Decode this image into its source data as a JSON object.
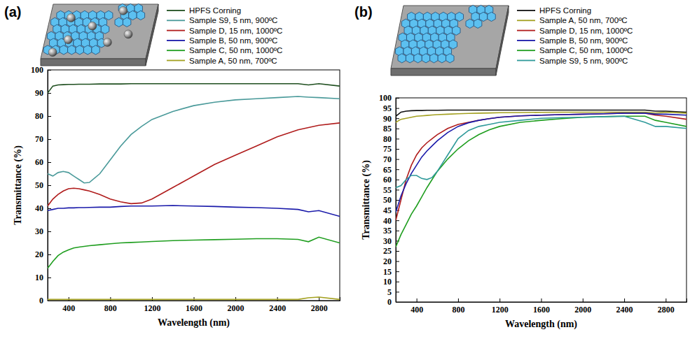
{
  "chart_data": [
    {
      "type": "line",
      "title": "(a)",
      "x_label": "Wavelength (nm)",
      "y_label": "Transmittance (%)",
      "x": [
        200,
        250,
        300,
        350,
        400,
        450,
        500,
        550,
        600,
        700,
        800,
        900,
        1000,
        1100,
        1200,
        1400,
        1600,
        1800,
        2000,
        2200,
        2400,
        2600,
        2700,
        2800,
        3000
      ],
      "xlim": [
        200,
        3000
      ],
      "xticks": [
        400,
        800,
        1200,
        1600,
        2000,
        2400,
        2800
      ],
      "ylim": [
        0,
        100
      ],
      "yticks": [
        0,
        10,
        20,
        30,
        40,
        50,
        60,
        70,
        80,
        90,
        100
      ],
      "legend": "top",
      "series": [
        {
          "name": "HPFS Corning",
          "color": "#1f4f1f",
          "values": [
            90,
            93,
            93.5,
            93.6,
            93.7,
            93.7,
            93.8,
            93.8,
            93.8,
            93.9,
            93.9,
            93.9,
            94,
            94,
            94,
            94,
            94,
            94,
            94,
            94,
            94,
            94,
            93.5,
            94,
            93
          ]
        },
        {
          "name": "Sample S9, 5 nm, 900ºC",
          "color": "#4a9a9a",
          "values": [
            55,
            54,
            55.5,
            56,
            55.5,
            54,
            52.5,
            51,
            51.2,
            55,
            61,
            67,
            72,
            75.5,
            78.5,
            82,
            84.5,
            86,
            87,
            87.5,
            88,
            88.5,
            88.2,
            88,
            87.5
          ]
        },
        {
          "name": "Sample D, 15 nm, 1000ºC",
          "color": "#b01c1c",
          "values": [
            41,
            44,
            46,
            47.5,
            48.5,
            48.7,
            48.5,
            48,
            47.5,
            46,
            44,
            42.8,
            42,
            42.3,
            44,
            49,
            54,
            59,
            63,
            67,
            71,
            74,
            75,
            76,
            77
          ]
        },
        {
          "name": "Sample B, 50 nm, 900ºC",
          "color": "#1a1aaa",
          "values": [
            39,
            39.5,
            40,
            40,
            40.2,
            40.2,
            40.3,
            40.3,
            40.4,
            40.5,
            40.5,
            40.8,
            41,
            41,
            41,
            41.2,
            41,
            40.8,
            40.5,
            40.3,
            40,
            39.5,
            38.5,
            39,
            36.5
          ]
        },
        {
          "name": "Sample C, 50 nm, 1000ºC",
          "color": "#1f9e1f",
          "values": [
            14,
            17,
            19.5,
            21,
            22,
            22.8,
            23.2,
            23.5,
            23.8,
            24.2,
            24.6,
            25,
            25.2,
            25.4,
            25.6,
            26,
            26.2,
            26.4,
            26.6,
            26.8,
            26.8,
            26.5,
            25.5,
            27.5,
            25
          ]
        },
        {
          "name": "Sample A, 50 nm, 700ºC",
          "color": "#a3a020",
          "values": [
            0.5,
            0.5,
            0.5,
            0.5,
            0.5,
            0.5,
            0.5,
            0.5,
            0.5,
            0.5,
            0.5,
            0.5,
            0.5,
            0.5,
            0.5,
            0.5,
            0.5,
            0.5,
            0.5,
            0.5,
            0.5,
            0.5,
            1.2,
            1.5,
            0.5
          ]
        }
      ]
    },
    {
      "type": "line",
      "title": "(b)",
      "x_label": "Wavelength (nm)",
      "y_label": "Transmittance (%)",
      "x": [
        200,
        250,
        300,
        350,
        400,
        450,
        500,
        550,
        600,
        700,
        800,
        900,
        1000,
        1100,
        1200,
        1400,
        1600,
        1800,
        2000,
        2200,
        2400,
        2600,
        2700,
        2800,
        3000
      ],
      "xlim": [
        200,
        3000
      ],
      "xticks": [
        400,
        800,
        1200,
        1600,
        2000,
        2400,
        2800
      ],
      "ylim": [
        0,
        100
      ],
      "yticks": [
        0,
        5,
        10,
        15,
        20,
        25,
        30,
        35,
        40,
        45,
        50,
        55,
        60,
        65,
        70,
        75,
        80,
        85,
        90,
        95,
        100
      ],
      "legend": "top",
      "series": [
        {
          "name": "HPFS Corning",
          "color": "#111111",
          "values": [
            91,
            93,
            93.5,
            93.7,
            93.8,
            93.8,
            93.9,
            93.9,
            93.9,
            94,
            94,
            94,
            94,
            94,
            94,
            94,
            94,
            94,
            94,
            94,
            94,
            94,
            93.5,
            93.5,
            93
          ]
        },
        {
          "name": "Sample A, 50 nm, 700ºC",
          "color": "#a3a020",
          "values": [
            88,
            89.5,
            90,
            90.5,
            91,
            91.2,
            91.4,
            91.6,
            91.8,
            92,
            92.2,
            92.4,
            92.5,
            92.6,
            92.7,
            92.8,
            92.9,
            93,
            93,
            93,
            93,
            93,
            92.5,
            93,
            92.5
          ]
        },
        {
          "name": "Sample D, 15 nm, 1000ºC",
          "color": "#b01c1c",
          "values": [
            40,
            50,
            60,
            67,
            72,
            75.5,
            78,
            80,
            82,
            85,
            87,
            88,
            89,
            89.8,
            90.5,
            91.2,
            91.5,
            91.8,
            92,
            92.2,
            92.5,
            92.5,
            91.5,
            91,
            89.5
          ]
        },
        {
          "name": "Sample B, 50 nm, 900ºC",
          "color": "#1a1aaa",
          "values": [
            44,
            52,
            58,
            63,
            67,
            71,
            74,
            76.5,
            79,
            83,
            86,
            87.8,
            89,
            89.8,
            90.5,
            91.2,
            91.5,
            91.8,
            92,
            92.2,
            92.5,
            92.5,
            92,
            92,
            91.5
          ]
        },
        {
          "name": "Sample C, 50 nm, 1000ºC",
          "color": "#1f9e1f",
          "values": [
            27,
            33,
            38,
            43,
            47,
            51.5,
            56,
            60,
            64,
            70,
            75,
            79,
            82,
            84.3,
            86,
            88,
            89,
            89.8,
            90.5,
            90.8,
            91,
            91,
            89,
            88,
            86
          ]
        },
        {
          "name": "Sample S9, 5 nm, 900ºC",
          "color": "#2f9a9a",
          "values": [
            56,
            57,
            60,
            62,
            62,
            60.5,
            60,
            61,
            64,
            72,
            80,
            84,
            86,
            87,
            88,
            89,
            90,
            90.3,
            90.5,
            90.8,
            91,
            88,
            86,
            86,
            85
          ]
        }
      ]
    }
  ]
}
